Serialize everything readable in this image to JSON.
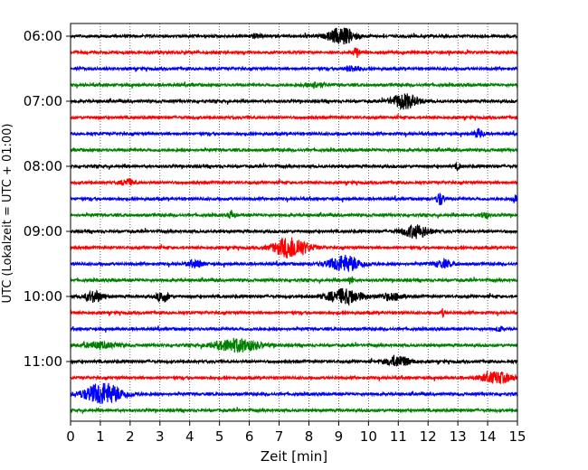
{
  "chart_data": {
    "type": "line",
    "title": "",
    "xlabel": "Zeit  [min]",
    "ylabel": "UTC (Lokalzeit = UTC + 01:00)",
    "xlim": [
      0,
      15
    ],
    "x_ticks": [
      "0",
      "1",
      "2",
      "3",
      "4",
      "5",
      "6",
      "7",
      "8",
      "9",
      "10",
      "11",
      "12",
      "13",
      "14",
      "15"
    ],
    "y_tick_labels": [
      "06:00",
      "07:00",
      "08:00",
      "09:00",
      "10:00",
      "11:00"
    ],
    "grid": "vertical dotted",
    "trace_colors": [
      "#000000",
      "#ff0000",
      "#0000ff",
      "#008000"
    ],
    "traces": [
      {
        "start": "06:00",
        "color": "#000000",
        "events": [
          [
            9.1,
            0.45,
            9
          ],
          [
            6.2,
            0.2,
            2
          ]
        ]
      },
      {
        "start": "06:15",
        "color": "#ff0000",
        "events": [
          [
            9.6,
            0.1,
            6
          ]
        ]
      },
      {
        "start": "06:30",
        "color": "#0000ff",
        "events": [
          [
            9.5,
            0.25,
            3
          ]
        ]
      },
      {
        "start": "06:45",
        "color": "#008000",
        "events": [
          [
            8.2,
            0.3,
            3
          ]
        ]
      },
      {
        "start": "07:00",
        "color": "#000000",
        "events": [
          [
            11.2,
            0.45,
            8
          ]
        ]
      },
      {
        "start": "07:15",
        "color": "#ff0000",
        "events": []
      },
      {
        "start": "07:30",
        "color": "#0000ff",
        "events": [
          [
            13.7,
            0.15,
            5
          ]
        ]
      },
      {
        "start": "07:45",
        "color": "#008000",
        "events": []
      },
      {
        "start": "08:00",
        "color": "#000000",
        "events": [
          [
            13.0,
            0.1,
            3
          ]
        ]
      },
      {
        "start": "08:15",
        "color": "#ff0000",
        "events": [
          [
            1.9,
            0.2,
            4
          ]
        ]
      },
      {
        "start": "08:30",
        "color": "#0000ff",
        "events": [
          [
            12.4,
            0.12,
            7
          ],
          [
            14.9,
            0.08,
            4
          ]
        ]
      },
      {
        "start": "08:45",
        "color": "#008000",
        "events": [
          [
            5.4,
            0.1,
            5
          ],
          [
            13.9,
            0.12,
            4
          ]
        ]
      },
      {
        "start": "09:00",
        "color": "#000000",
        "events": [
          [
            11.6,
            0.45,
            7
          ]
        ]
      },
      {
        "start": "09:15",
        "color": "#ff0000",
        "events": [
          [
            7.4,
            0.55,
            12
          ]
        ]
      },
      {
        "start": "09:30",
        "color": "#0000ff",
        "events": [
          [
            9.2,
            0.55,
            9
          ],
          [
            4.2,
            0.25,
            4
          ],
          [
            12.5,
            0.3,
            4
          ]
        ]
      },
      {
        "start": "09:45",
        "color": "#008000",
        "events": [
          [
            9.4,
            0.06,
            6
          ]
        ]
      },
      {
        "start": "10:00",
        "color": "#000000",
        "events": [
          [
            9.2,
            0.6,
            8
          ],
          [
            0.8,
            0.3,
            6
          ],
          [
            3.1,
            0.2,
            6
          ],
          [
            10.8,
            0.4,
            4
          ]
        ]
      },
      {
        "start": "10:15",
        "color": "#ff0000",
        "events": [
          [
            12.5,
            0.06,
            4
          ]
        ]
      },
      {
        "start": "10:30",
        "color": "#0000ff",
        "events": [
          [
            14.4,
            0.1,
            3
          ]
        ]
      },
      {
        "start": "10:45",
        "color": "#008000",
        "events": [
          [
            5.6,
            0.75,
            7
          ],
          [
            1.0,
            0.6,
            3
          ]
        ]
      },
      {
        "start": "11:00",
        "color": "#000000",
        "events": [
          [
            11.0,
            0.4,
            6
          ]
        ]
      },
      {
        "start": "11:15",
        "color": "#ff0000",
        "events": [
          [
            14.3,
            0.55,
            6
          ]
        ]
      },
      {
        "start": "11:30",
        "color": "#0000ff",
        "events": [
          [
            1.1,
            0.65,
            12
          ]
        ]
      },
      {
        "start": "11:45",
        "color": "#008000",
        "events": []
      }
    ]
  }
}
